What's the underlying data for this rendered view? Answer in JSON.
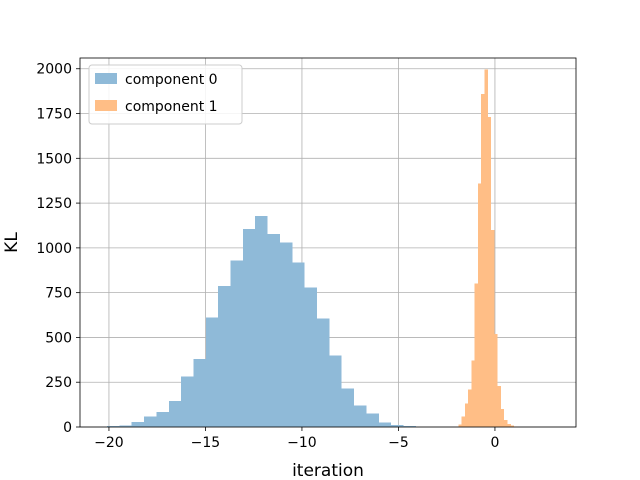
{
  "chart_data": {
    "type": "bar",
    "subtype": "histogram",
    "xlabel": "iteration",
    "ylabel": "KL",
    "xlim": [
      -21.5,
      4.2
    ],
    "ylim": [
      0,
      2060
    ],
    "xticks": [
      -20,
      -15,
      -10,
      -5,
      0
    ],
    "xtick_labels": [
      "−20",
      "−15",
      "−10",
      "−5",
      "0"
    ],
    "yticks": [
      0,
      250,
      500,
      750,
      1000,
      1250,
      1500,
      1750,
      2000
    ],
    "ytick_labels": [
      "0",
      "250",
      "500",
      "750",
      "1000",
      "1250",
      "1500",
      "1750",
      "2000"
    ],
    "grid": true,
    "legend_position": "top-left",
    "series": [
      {
        "name": "component 0",
        "color": "#8fbad8",
        "bin_start": -20.1,
        "bin_width": 0.64,
        "counts": [
          5,
          8,
          28,
          58,
          83,
          145,
          282,
          380,
          610,
          788,
          930,
          1105,
          1178,
          1078,
          1030,
          918,
          778,
          605,
          400,
          215,
          120,
          75,
          25,
          10,
          5
        ]
      },
      {
        "name": "component 1",
        "color": "#ffbe86",
        "bin_start": -1.9,
        "bin_width": 0.17,
        "counts": [
          15,
          58,
          130,
          210,
          370,
          800,
          1360,
          1860,
          1995,
          1730,
          1100,
          520,
          230,
          100,
          40,
          18,
          8,
          3
        ]
      }
    ]
  }
}
